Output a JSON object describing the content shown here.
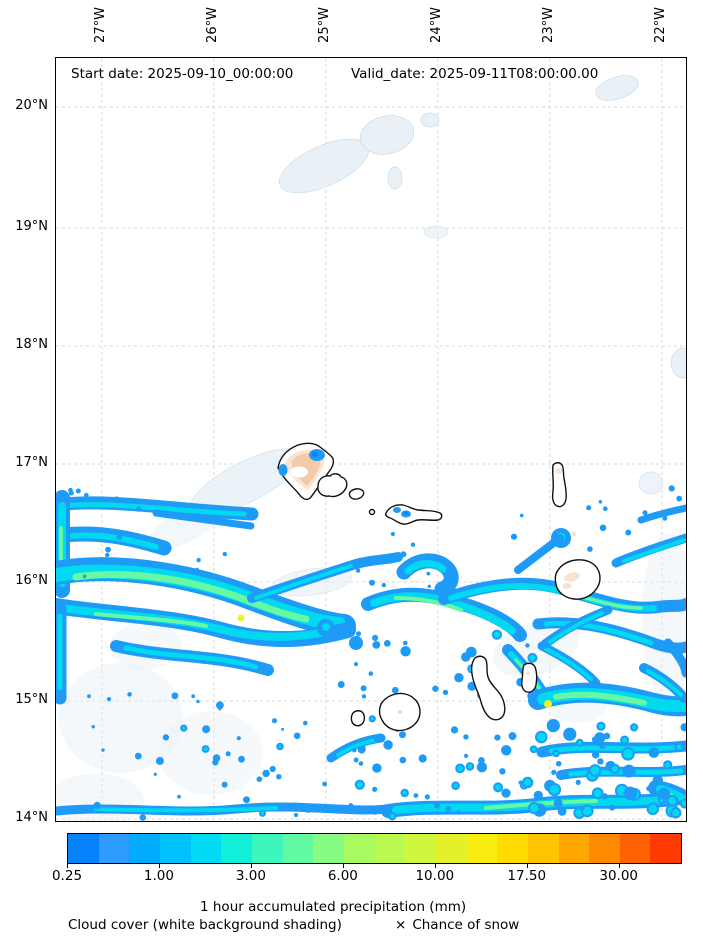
{
  "titles": {
    "start": "Start date: 2025-09-10_00:00:00",
    "valid": "Valid_date: 2025-09-11T08:00:00.00"
  },
  "axes": {
    "lon": [
      "27°W",
      "26°W",
      "25°W",
      "24°W",
      "23°W",
      "22°W"
    ],
    "lat": [
      "20°N",
      "19°N",
      "18°N",
      "17°N",
      "16°N",
      "15°N",
      "14°N"
    ]
  },
  "colorbar": {
    "label": "1 hour accumulated precipitation (mm)",
    "ticks": [
      "0.25",
      "1.00",
      "3.00",
      "6.00",
      "10.00",
      "17.50",
      "30.00"
    ],
    "segment_colors": [
      "#0682FD",
      "#2E9BFE",
      "#01ABFE",
      "#00C3FE",
      "#00DAF2",
      "#12EFD9",
      "#3DF6BC",
      "#62FAA0",
      "#87FC83",
      "#A7FB61",
      "#BAF950",
      "#D0F63D",
      "#E4F02A",
      "#F9EC11",
      "#FFDB00",
      "#FFC300",
      "#FFA600",
      "#FF8A00",
      "#FF6200",
      "#FF3A00"
    ]
  },
  "legend": {
    "cloud": "Cloud cover (white background shading)",
    "snow_marker": "×",
    "snow": "Chance of snow"
  },
  "colors": {
    "grid": "#cccccc",
    "cloud_fill": "#E9F1F7",
    "cloud_edge": "#C9DDEA",
    "precip_edge": "#1E9AF7",
    "precip_mid": "#00D9EF",
    "precip_high": "#66F8A3",
    "precip_peak": "#EEF227",
    "precip_deep": "#0880F2",
    "island_fill": "#FFFFFF",
    "island_outline": "#111111",
    "terrain_tint": "#F2C5A2"
  }
}
